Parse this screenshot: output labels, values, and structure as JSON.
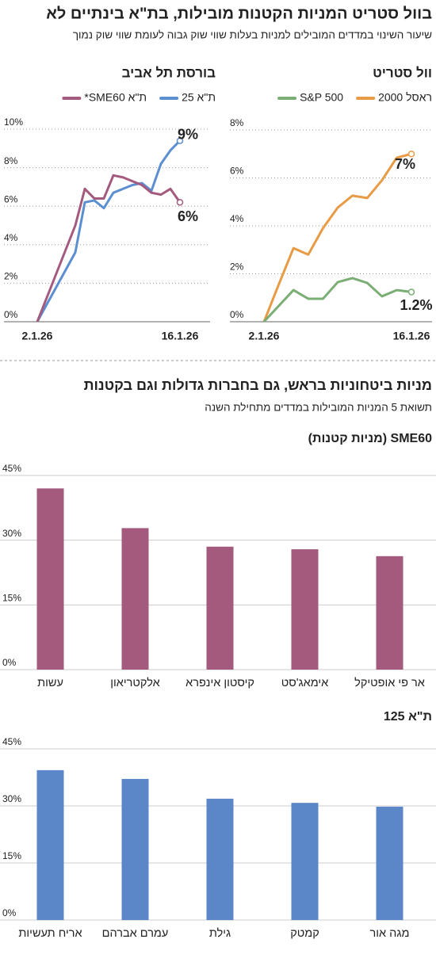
{
  "header": {
    "title": "בוול סטריט המניות הקטנות מובילות, בת\"א בינתיים לא",
    "subtitle": "שיעור השינוי במדדים המובילים למניות בעלות שווי שוק גבוה לעומת שווי שוק נמוך"
  },
  "section": {
    "title": "מניות ביטחוניות בראש, גם בחברות גדולות וגם בקטנות",
    "subtitle": "תשואת 5 המניות המובילות במדדים מתחילת השנה"
  },
  "chart_data": [
    {
      "type": "line",
      "title": "וול סטריט",
      "categories": [
        "2.1.26",
        null,
        null,
        null,
        null,
        null,
        null,
        null,
        null,
        null,
        "16.1.26"
      ],
      "series": [
        {
          "name": "ראסל 2000",
          "color": "#e89a45",
          "values": [
            0,
            1.55,
            3.07,
            2.8,
            3.9,
            4.76,
            5.26,
            5.16,
            5.9,
            6.84,
            7
          ],
          "value_labels": [
            null,
            null,
            null,
            null,
            null,
            null,
            null,
            null,
            null,
            null,
            "7%"
          ]
        },
        {
          "name": "S&P 500",
          "color": "#7aae74",
          "values": [
            0,
            0.66,
            1.32,
            0.96,
            0.96,
            1.65,
            1.82,
            1.62,
            1.06,
            1.32,
            1.24
          ],
          "value_labels": [
            null,
            null,
            null,
            null,
            null,
            null,
            null,
            null,
            null,
            null,
            "1.2%"
          ]
        }
      ],
      "ylim": [
        0,
        8
      ],
      "yticks": [
        {
          "value": 0,
          "label": "0%"
        },
        {
          "value": 2,
          "label": "2%"
        },
        {
          "value": 4,
          "label": "4%"
        },
        {
          "value": 6,
          "label": "6%"
        },
        {
          "value": 8,
          "label": "8%"
        }
      ],
      "grid": true
    },
    {
      "type": "line",
      "title": "בורסת תל אביב",
      "categories": [
        "2.1.26",
        null,
        null,
        null,
        null,
        null,
        null,
        null,
        null,
        null,
        null,
        null,
        null,
        null,
        null,
        "16.1.26"
      ],
      "series": [
        {
          "name": "ת\"א 25",
          "color": "#5b8fd1",
          "values": [
            0,
            0.9,
            1.8,
            2.7,
            3.6,
            6.2,
            6.3,
            5.9,
            6.7,
            6.9,
            7.1,
            7.2,
            6.8,
            8.2,
            8.9,
            9.4
          ],
          "value_labels": [
            null,
            null,
            null,
            null,
            null,
            null,
            null,
            null,
            null,
            null,
            null,
            null,
            null,
            null,
            null,
            "9%"
          ]
        },
        {
          "name": "ת\"א SME60*",
          "color": "#a45a7e",
          "values": [
            0,
            1.25,
            2.5,
            3.75,
            5,
            6.9,
            6.4,
            6.4,
            7.6,
            7.5,
            7.3,
            7.1,
            6.7,
            6.6,
            6.9,
            6.2
          ],
          "value_labels": [
            null,
            null,
            null,
            null,
            null,
            null,
            null,
            null,
            null,
            null,
            null,
            null,
            null,
            null,
            null,
            "6%"
          ]
        }
      ],
      "ylim": [
        0,
        10
      ],
      "yticks": [
        {
          "value": 0,
          "label": "0%"
        },
        {
          "value": 2,
          "label": "2%"
        },
        {
          "value": 4,
          "label": "4%"
        },
        {
          "value": 6,
          "label": "6%"
        },
        {
          "value": 8,
          "label": "8%"
        },
        {
          "value": 10,
          "label": "10%"
        }
      ],
      "grid": true
    },
    {
      "type": "bar",
      "title": "SME60 (מניות קטנות)",
      "categories": [
        "עשות",
        "אלקטריאון",
        "קיסטון אינפרא",
        "אימאג'סט",
        "אר פי אופטיקל"
      ],
      "values": [
        42,
        32.8,
        28.5,
        27.9,
        26.3
      ],
      "color": "#a35a7d",
      "ylim": [
        0,
        45
      ],
      "yticks": [
        {
          "value": 0,
          "label": "0%"
        },
        {
          "value": 15,
          "label": "15%"
        },
        {
          "value": 30,
          "label": "30%"
        },
        {
          "value": 45,
          "label": "45%"
        }
      ],
      "grid": true
    },
    {
      "type": "bar",
      "title": "ת\"א 125",
      "categories": [
        "אריח תעשיות",
        "עמרם אברהם",
        "גילת",
        "קמטק",
        "מגה אור"
      ],
      "values": [
        39.4,
        37.1,
        31.9,
        30.8,
        29.8
      ],
      "color": "#5b87c8",
      "ylim": [
        0,
        45
      ],
      "yticks": [
        {
          "value": 0,
          "label": "0%"
        },
        {
          "value": 15,
          "label": "15%"
        },
        {
          "value": 30,
          "label": "30%"
        },
        {
          "value": 45,
          "label": "45%"
        }
      ],
      "grid": true
    }
  ]
}
